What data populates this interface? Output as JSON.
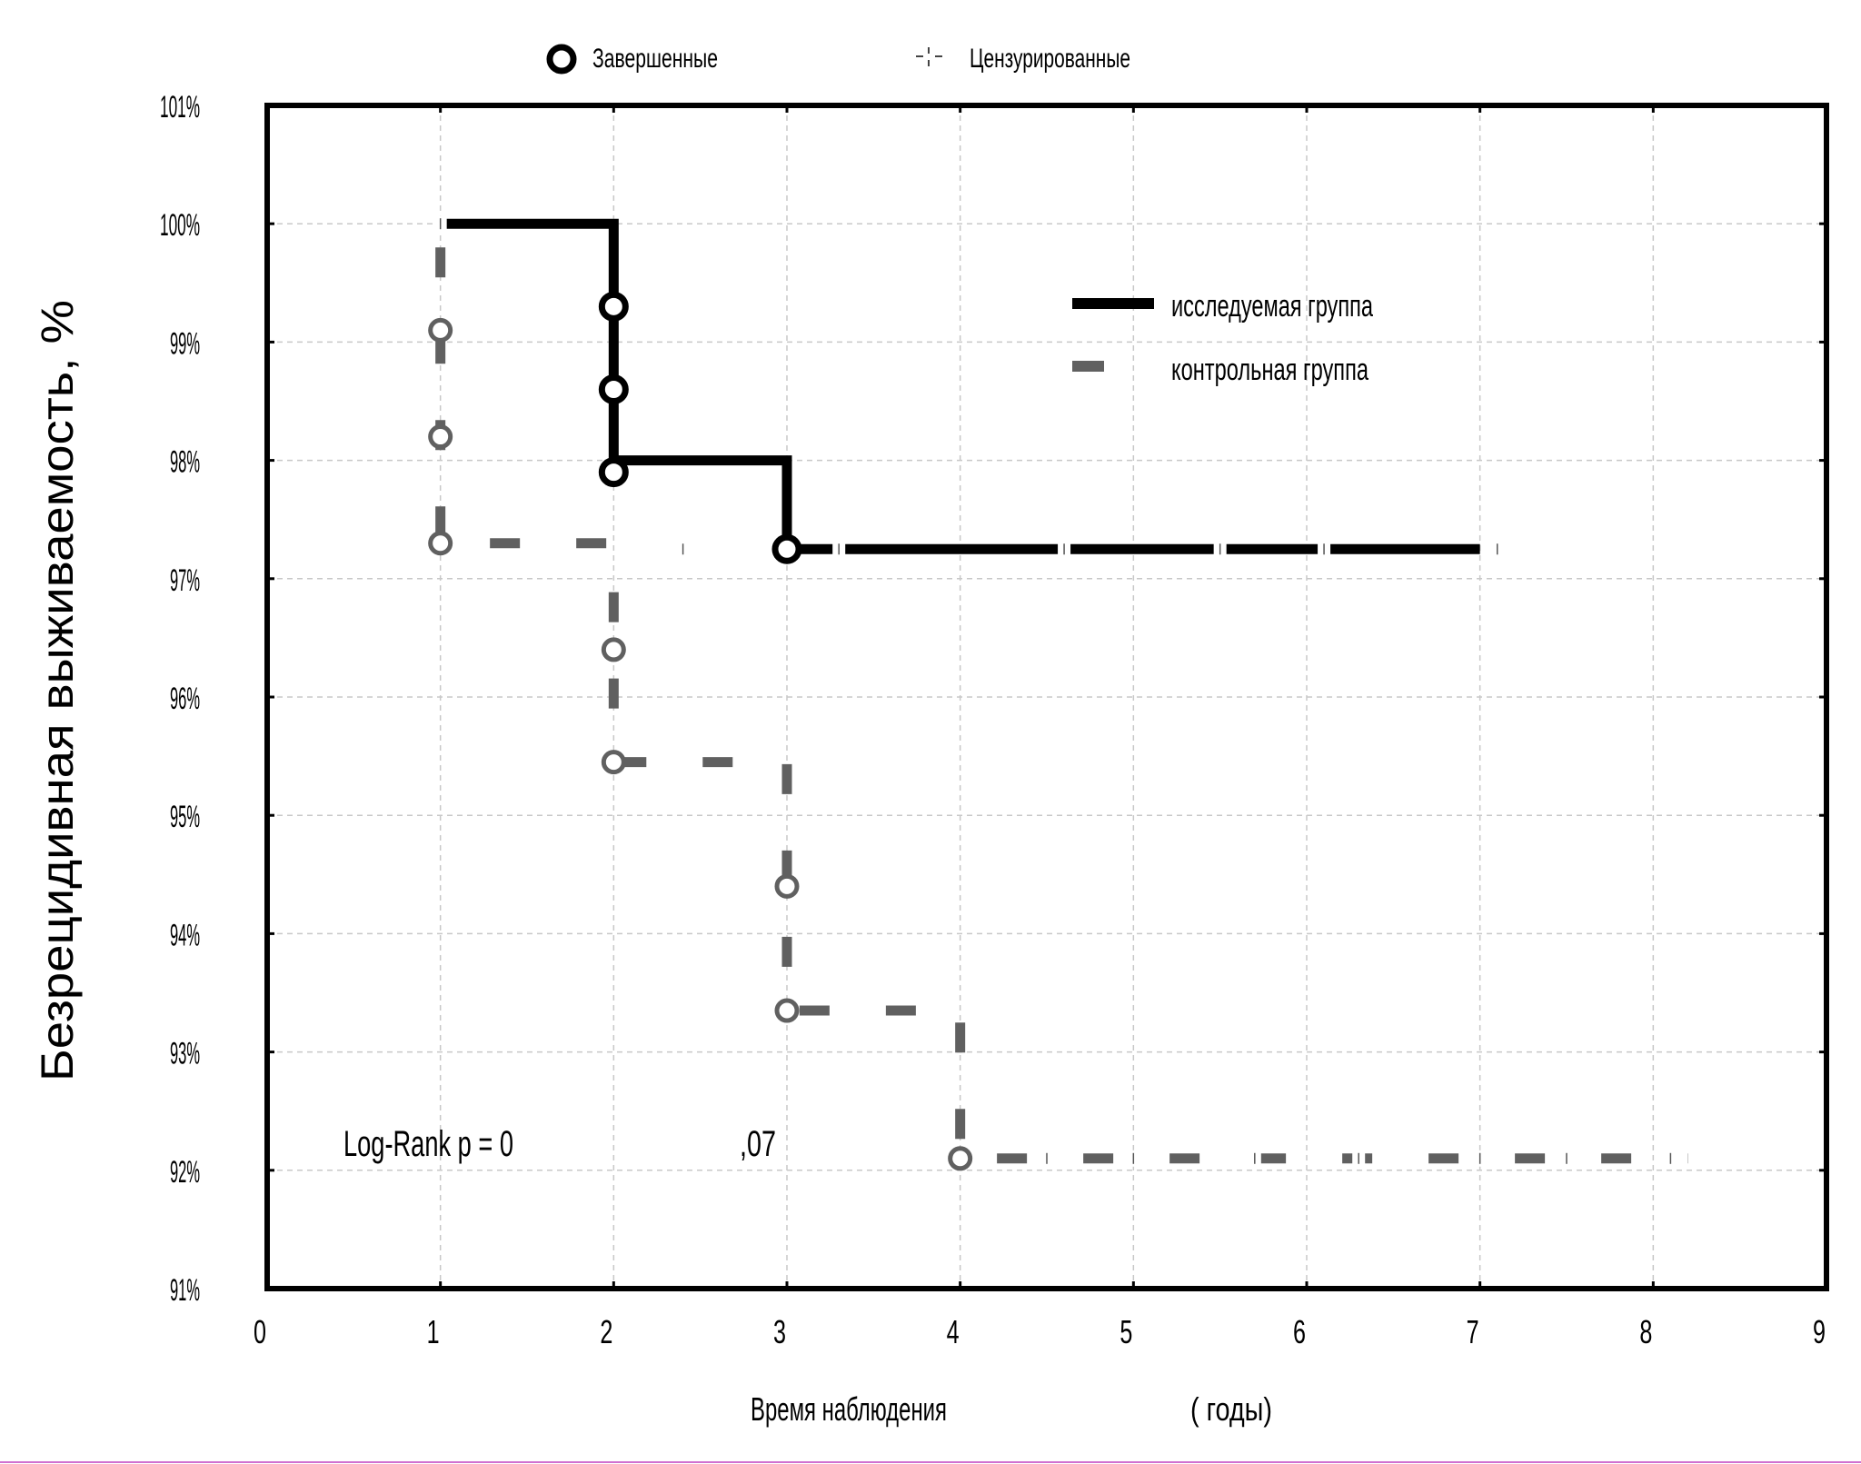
{
  "chart_data": {
    "type": "line",
    "subtype": "kaplan-meier step",
    "ylabel": "Безрецидивная выживаемость, %",
    "xlabel_left": "Время наблюдения",
    "xlabel_right": "(   годы)",
    "xlim": [
      0,
      9
    ],
    "ylim": [
      91,
      101
    ],
    "x_ticks": [
      "0",
      "1",
      "2",
      "3",
      "4",
      "5",
      "6",
      "7",
      "8",
      "9"
    ],
    "y_ticks": [
      "91%",
      "92%",
      "93%",
      "94%",
      "95%",
      "96%",
      "97%",
      "98%",
      "99%",
      "100%",
      "101%"
    ],
    "grid": true,
    "marker_legend": {
      "completed": "Завершенные",
      "censored": "Цензурированные"
    },
    "series_legend_position": "top-right",
    "annotation_left": "Log-Rank p = 0",
    "annotation_right": ",07",
    "series": [
      {
        "name": "исследуемая группа",
        "color": "#000000",
        "line_style": "solid",
        "steps": [
          [
            1,
            100
          ],
          [
            2,
            100
          ],
          [
            2,
            98
          ],
          [
            3,
            98
          ],
          [
            3,
            97.25
          ],
          [
            7,
            97.25
          ]
        ],
        "completed_points": [
          [
            2,
            99.3
          ],
          [
            2,
            98.6
          ],
          [
            2,
            97.9
          ],
          [
            3,
            97.25
          ]
        ],
        "censored_points": [
          [
            1,
            100
          ],
          [
            2.4,
            97.25
          ],
          [
            3.3,
            97.25
          ],
          [
            4.6,
            97.25
          ],
          [
            5.5,
            97.25
          ],
          [
            6.1,
            97.25
          ],
          [
            7.1,
            97.25
          ]
        ]
      },
      {
        "name": "контрольная группа",
        "color": "#606060",
        "line_style": "dashed",
        "steps": [
          [
            1,
            99.8
          ],
          [
            1,
            97.3
          ],
          [
            2,
            97.3
          ],
          [
            2,
            95.45
          ],
          [
            3,
            95.45
          ],
          [
            3,
            93.35
          ],
          [
            4,
            93.35
          ],
          [
            4,
            92.1
          ],
          [
            8.2,
            92.1
          ]
        ],
        "completed_points": [
          [
            1,
            99.1
          ],
          [
            1,
            98.2
          ],
          [
            1,
            97.3
          ],
          [
            2,
            96.4
          ],
          [
            2,
            95.45
          ],
          [
            3,
            94.4
          ],
          [
            3,
            93.35
          ],
          [
            4,
            92.1
          ]
        ],
        "censored_points": [
          [
            4.5,
            92.1
          ],
          [
            5.0,
            92.1
          ],
          [
            5.7,
            92.1
          ],
          [
            6.3,
            92.1
          ],
          [
            7.0,
            92.1
          ],
          [
            7.5,
            92.1
          ],
          [
            8.1,
            92.1
          ]
        ]
      }
    ]
  }
}
